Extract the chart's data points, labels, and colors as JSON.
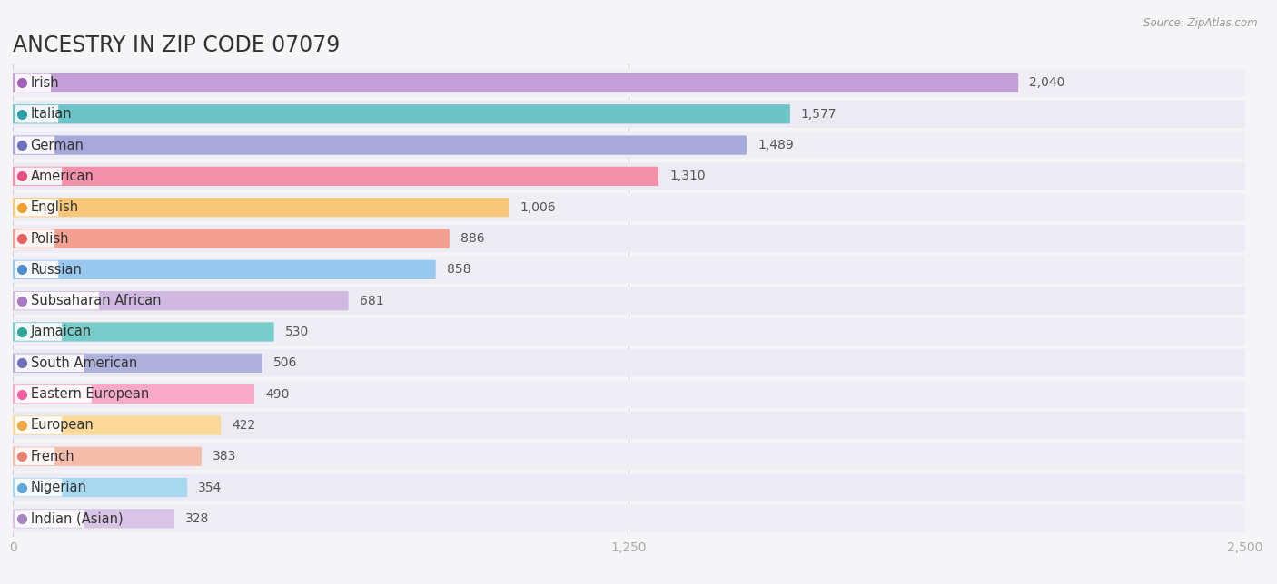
{
  "title": "ANCESTRY IN ZIP CODE 07079",
  "source": "Source: ZipAtlas.com",
  "categories": [
    "Irish",
    "Italian",
    "German",
    "American",
    "English",
    "Polish",
    "Russian",
    "Subsaharan African",
    "Jamaican",
    "South American",
    "Eastern European",
    "European",
    "French",
    "Nigerian",
    "Indian (Asian)"
  ],
  "values": [
    2040,
    1577,
    1489,
    1310,
    1006,
    886,
    858,
    681,
    530,
    506,
    490,
    422,
    383,
    354,
    328
  ],
  "bar_colors": [
    "#c49fd5",
    "#6dc4c6",
    "#a8a8dc",
    "#f590aa",
    "#f8c87a",
    "#f4a090",
    "#98c8ef",
    "#d0b8e0",
    "#78ccca",
    "#b0b0dc",
    "#f8aac8",
    "#fad898",
    "#f5bcaa",
    "#a8d8f0",
    "#d8c4e4"
  ],
  "dot_colors": [
    "#a060b8",
    "#30a0a8",
    "#7070c0",
    "#e85080",
    "#f0a030",
    "#e86060",
    "#5090d0",
    "#a878c0",
    "#30a898",
    "#7070b8",
    "#f060a0",
    "#f0a840",
    "#e88070",
    "#60a8d8",
    "#a888c0"
  ],
  "row_bg_colors": [
    "#f0eef5",
    "#eceaf2"
  ],
  "background_color": "#f5f5f8",
  "xlim": [
    0,
    2500
  ],
  "xticks": [
    0,
    1250,
    2500
  ],
  "title_fontsize": 17,
  "label_fontsize": 10.5,
  "value_fontsize": 10
}
